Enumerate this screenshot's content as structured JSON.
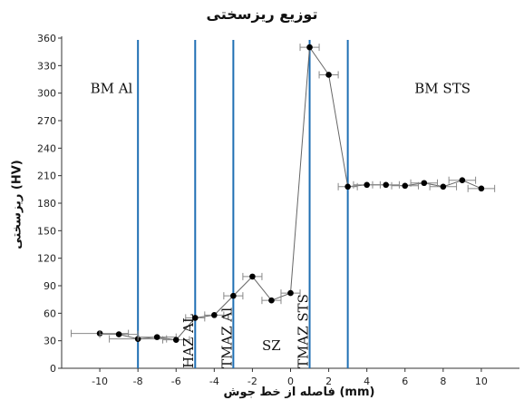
{
  "chart_data": {
    "type": "scatter",
    "title": "توزیع ریزسختی",
    "xlabel": "فاصله از خط جوش (mm)",
    "ylabel": "ریزسختی (HV)",
    "xlim": [
      -12,
      12
    ],
    "ylim": [
      0,
      360
    ],
    "x_ticks": [
      -10,
      -8,
      -6,
      -4,
      -2,
      0,
      2,
      4,
      6,
      8,
      10
    ],
    "y_ticks": [
      0,
      30,
      60,
      90,
      120,
      150,
      180,
      210,
      240,
      270,
      300,
      330,
      360
    ],
    "grid": false,
    "series": [
      {
        "points": [
          {
            "x": -10,
            "y": 38,
            "err": 1.5
          },
          {
            "x": -9,
            "y": 37,
            "err": 1.0
          },
          {
            "x": -8,
            "y": 32,
            "err": 1.5
          },
          {
            "x": -7,
            "y": 34,
            "err": 1.0
          },
          {
            "x": -6,
            "y": 31,
            "err": 0.7
          },
          {
            "x": -5,
            "y": 55,
            "err": 0.5
          },
          {
            "x": -4,
            "y": 58,
            "err": 0.5
          },
          {
            "x": -3,
            "y": 79,
            "err": 0.5
          },
          {
            "x": -2,
            "y": 100,
            "err": 0.5
          },
          {
            "x": -1,
            "y": 74,
            "err": 0.5
          },
          {
            "x": 0,
            "y": 82,
            "err": 0.5
          },
          {
            "x": 1,
            "y": 350,
            "err": 0.5
          },
          {
            "x": 2,
            "y": 320,
            "err": 0.5
          },
          {
            "x": 3,
            "y": 198,
            "err": 0.5
          },
          {
            "x": 4,
            "y": 200,
            "err": 0.7
          },
          {
            "x": 5,
            "y": 200,
            "err": 0.7
          },
          {
            "x": 6,
            "y": 199,
            "err": 0.7
          },
          {
            "x": 7,
            "y": 202,
            "err": 0.7
          },
          {
            "x": 8,
            "y": 198,
            "err": 0.7
          },
          {
            "x": 9,
            "y": 205,
            "err": 0.7
          },
          {
            "x": 10,
            "y": 196,
            "err": 0.7
          }
        ]
      }
    ],
    "zone_boundaries": [
      -8,
      -5,
      -3,
      1,
      3
    ],
    "zone_labels": [
      {
        "text": "BM Al",
        "x": -10.5,
        "y": 300,
        "rotated": false
      },
      {
        "text": "HAZ AL",
        "x": -5.1,
        "y": 0,
        "rotated": true
      },
      {
        "text": "TMAZ Al",
        "x": -3.1,
        "y": 0,
        "rotated": true
      },
      {
        "text": "SZ",
        "x": -1.5,
        "y": 20,
        "rotated": false
      },
      {
        "text": "TMAZ STS",
        "x": 0.9,
        "y": 0,
        "rotated": true
      },
      {
        "text": "BM STS",
        "x": 6.5,
        "y": 300,
        "rotated": false
      }
    ],
    "colors": {
      "boundary_line": "#1f6fb4",
      "marker": "#000000",
      "connector": "#666666",
      "error_bar": "#888888"
    }
  }
}
